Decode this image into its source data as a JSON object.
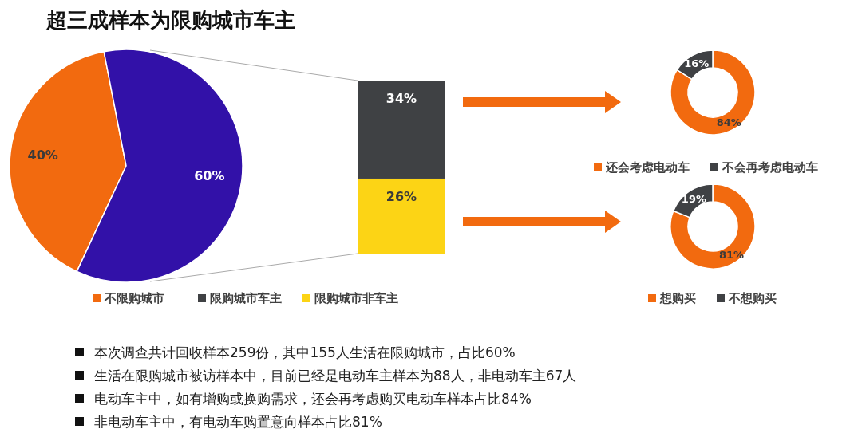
{
  "chart_data": [
    {
      "type": "pie",
      "title": "超三成样本为限购城市车主",
      "categories": [
        "不限购城市",
        null
      ],
      "values": [
        40,
        60
      ],
      "value_labels": [
        "40%",
        "60%"
      ],
      "colors": [
        "#f26a0f",
        "#3211a8"
      ],
      "legend": "bottom",
      "annotations": [
        "本次调查共计回收样本259份，其中155人生活在限购城市，占比60%",
        "生活在限购城市被访样本中，目前已经是电动车主样本为88人，非电动车主67人",
        "电动车主中，如有增购或换购需求，还会再考虑购买电动车样本占比84%",
        "非电动车主中，有电动车购置意向样本占比81%"
      ]
    },
    {
      "type": "bar",
      "stacked": true,
      "categories": [
        null
      ],
      "legend": "bottom",
      "series": [
        {
          "name": "限购城市非车主",
          "color": "#fcd415",
          "values": [
            26
          ],
          "value_labels": [
            "26%"
          ]
        },
        {
          "name": "限购城市车主",
          "color": "#3f4144",
          "values": [
            34
          ],
          "value_labels": [
            "34%"
          ]
        }
      ]
    },
    {
      "type": "donut",
      "categories": [
        "还会考虑电动车",
        "不会再考虑电动车"
      ],
      "values": [
        84,
        16
      ],
      "value_labels": [
        "84%",
        "16%"
      ],
      "colors": [
        "#f26a0f",
        "#3f4144"
      ],
      "legend": "bottom"
    },
    {
      "type": "donut",
      "categories": [
        "想购买",
        "不想购买"
      ],
      "values": [
        81,
        19
      ],
      "value_labels": [
        "81%",
        "19%"
      ],
      "colors": [
        "#f26a0f",
        "#3f4144"
      ],
      "legend": "bottom"
    }
  ]
}
